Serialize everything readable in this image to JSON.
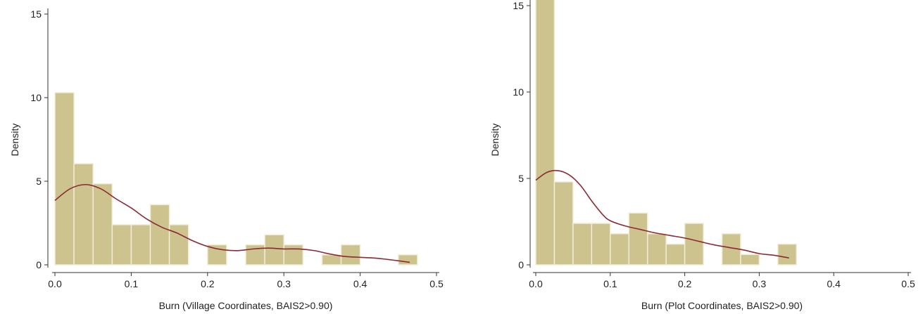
{
  "colors": {
    "bar_fill": "#cdc38f",
    "bar_stroke": "#f1edd8",
    "kde_line": "#8b2a35",
    "axis": "#333333"
  },
  "chart_data": [
    {
      "type": "bar",
      "subtype": "histogram-with-kde",
      "xlabel": "Burn (Village Coordinates, BAIS2>0.90)",
      "ylabel": "Density",
      "xlim": [
        -0.005,
        0.505
      ],
      "ylim": [
        0,
        15.5
      ],
      "xticks": [
        "0.0",
        "0.1",
        "0.2",
        "0.3",
        "0.4",
        "0.5"
      ],
      "yticks": [
        "0",
        "5",
        "10",
        "15"
      ],
      "bin_width": 0.025,
      "bins": [
        {
          "start": 0.0,
          "value": 10.3
        },
        {
          "start": 0.025,
          "value": 6.05
        },
        {
          "start": 0.05,
          "value": 4.85
        },
        {
          "start": 0.075,
          "value": 2.4
        },
        {
          "start": 0.1,
          "value": 2.4
        },
        {
          "start": 0.125,
          "value": 3.6
        },
        {
          "start": 0.15,
          "value": 2.4
        },
        {
          "start": 0.2,
          "value": 1.2
        },
        {
          "start": 0.25,
          "value": 1.2
        },
        {
          "start": 0.275,
          "value": 1.8
        },
        {
          "start": 0.3,
          "value": 1.2
        },
        {
          "start": 0.35,
          "value": 0.6
        },
        {
          "start": 0.375,
          "value": 1.2
        },
        {
          "start": 0.45,
          "value": 0.6
        }
      ],
      "kde": {
        "x": [
          0.0,
          0.02,
          0.04,
          0.06,
          0.08,
          0.1,
          0.12,
          0.14,
          0.16,
          0.18,
          0.2,
          0.22,
          0.24,
          0.26,
          0.28,
          0.3,
          0.32,
          0.34,
          0.36,
          0.38,
          0.4,
          0.42,
          0.44,
          0.465
        ],
        "y": [
          3.85,
          4.55,
          4.8,
          4.55,
          3.95,
          3.4,
          2.75,
          2.25,
          1.9,
          1.45,
          1.1,
          0.9,
          0.85,
          0.95,
          1.0,
          0.95,
          0.95,
          0.85,
          0.65,
          0.5,
          0.45,
          0.4,
          0.3,
          0.15
        ]
      }
    },
    {
      "type": "bar",
      "subtype": "histogram-with-kde",
      "xlabel": "Burn (Plot Coordinates, BAIS2>0.90)",
      "ylabel": "Density",
      "xlim": [
        -0.005,
        0.505
      ],
      "ylim": [
        0,
        16.8
      ],
      "xticks": [
        "0.0",
        "0.1",
        "0.2",
        "0.3",
        "0.4",
        "0.5"
      ],
      "yticks": [
        "0",
        "5",
        "10",
        "15"
      ],
      "bin_width": 0.025,
      "bins": [
        {
          "start": 0.0,
          "value": 16.35
        },
        {
          "start": 0.025,
          "value": 4.8
        },
        {
          "start": 0.05,
          "value": 2.4
        },
        {
          "start": 0.075,
          "value": 2.4
        },
        {
          "start": 0.1,
          "value": 1.8
        },
        {
          "start": 0.125,
          "value": 3.0
        },
        {
          "start": 0.15,
          "value": 1.8
        },
        {
          "start": 0.175,
          "value": 1.2
        },
        {
          "start": 0.2,
          "value": 2.4
        },
        {
          "start": 0.25,
          "value": 1.8
        },
        {
          "start": 0.275,
          "value": 0.6
        },
        {
          "start": 0.325,
          "value": 1.2
        }
      ],
      "kde": {
        "x": [
          0.0,
          0.015,
          0.03,
          0.045,
          0.06,
          0.075,
          0.09,
          0.1,
          0.12,
          0.14,
          0.16,
          0.18,
          0.2,
          0.22,
          0.24,
          0.26,
          0.28,
          0.3,
          0.32,
          0.34
        ],
        "y": [
          4.9,
          5.35,
          5.45,
          5.2,
          4.6,
          3.7,
          2.9,
          2.55,
          2.25,
          2.05,
          1.85,
          1.7,
          1.55,
          1.35,
          1.15,
          1.0,
          0.85,
          0.65,
          0.55,
          0.4
        ]
      }
    }
  ]
}
